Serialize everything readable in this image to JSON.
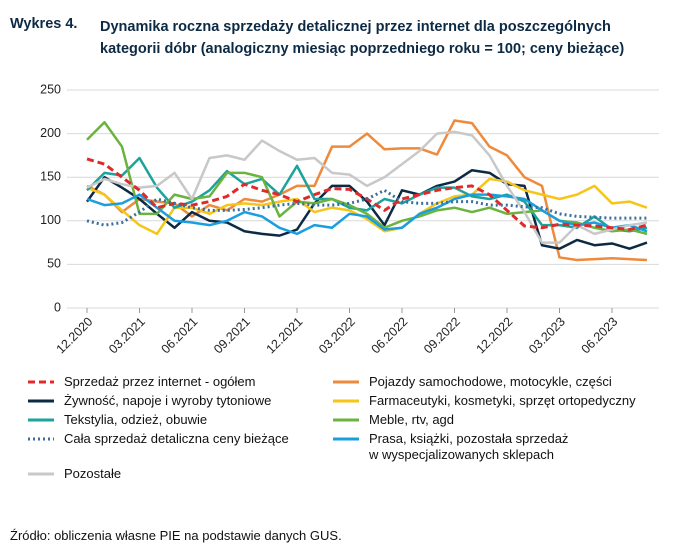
{
  "chart_data": {
    "type": "line",
    "label": "Wykres 4.",
    "title": "Dynamika roczna sprzedaży detalicznej przez internet dla poszczególnych kategorii dóbr (analogiczny miesiąc poprzedniego roku = 100; ceny bieżące)",
    "source": "Źródło: obliczenia własne PIE na podstawie danych GUS.",
    "categories": [
      "12.2020",
      null,
      null,
      "03.2021",
      null,
      null,
      "06.2021",
      null,
      null,
      "09.2021",
      null,
      null,
      "12.2021",
      null,
      null,
      "03.2022",
      null,
      null,
      "06.2022",
      null,
      null,
      "09.2022",
      null,
      null,
      "12.2022",
      null,
      null,
      "03.2023",
      null,
      null,
      "06.2023",
      null,
      null
    ],
    "ylim": [
      0,
      250
    ],
    "yticks": [
      0,
      50,
      100,
      150,
      200,
      250
    ],
    "grid": true,
    "series": [
      {
        "name": "Sprzedaż przez internet - ogółem",
        "color": "#e02a2a",
        "dash": "dashed",
        "values": [
          171,
          165,
          150,
          135,
          115,
          120,
          118,
          122,
          128,
          142,
          135,
          130,
          122,
          130,
          137,
          136,
          125,
          112,
          125,
          130,
          135,
          138,
          140,
          130,
          112,
          94,
          92,
          96,
          95,
          94,
          92,
          90,
          95
        ]
      },
      {
        "name": "Pojazdy samochodowe, motocykle, części",
        "color": "#ee8a3c",
        "dash": "solid",
        "values": [
          140,
          130,
          110,
          125,
          122,
          120,
          105,
          118,
          112,
          125,
          122,
          130,
          140,
          140,
          185,
          185,
          200,
          182,
          183,
          183,
          176,
          215,
          212,
          185,
          175,
          150,
          140,
          58,
          55,
          56,
          57,
          56,
          55
        ]
      },
      {
        "name": "Żywność, napoje i wyroby tytoniowe",
        "color": "#0d2a44",
        "dash": "solid",
        "values": [
          122,
          150,
          138,
          125,
          108,
          92,
          110,
          100,
          98,
          88,
          85,
          83,
          90,
          120,
          140,
          140,
          122,
          95,
          135,
          130,
          140,
          145,
          158,
          155,
          142,
          140,
          72,
          68,
          78,
          72,
          74,
          68,
          75
        ]
      },
      {
        "name": "Farmaceutyki, kosmetyki, sprzęt ortopedyczny",
        "color": "#f5c518",
        "dash": "solid",
        "values": [
          138,
          130,
          112,
          95,
          85,
          115,
          115,
          108,
          118,
          120,
          118,
          122,
          125,
          110,
          115,
          112,
          102,
          88,
          92,
          108,
          120,
          128,
          130,
          148,
          145,
          135,
          130,
          125,
          130,
          140,
          120,
          122,
          115
        ]
      },
      {
        "name": "Tekstylia, odzież, obuwie",
        "color": "#1ba39c",
        "dash": "solid",
        "values": [
          135,
          155,
          152,
          172,
          138,
          115,
          122,
          135,
          157,
          142,
          148,
          130,
          163,
          125,
          125,
          115,
          112,
          125,
          120,
          130,
          138,
          138,
          128,
          125,
          130,
          122,
          95,
          95,
          92,
          105,
          90,
          88,
          92
        ]
      },
      {
        "name": "Meble, rtv, agd",
        "color": "#6ab33e",
        "dash": "solid",
        "values": [
          193,
          213,
          185,
          108,
          108,
          130,
          125,
          128,
          155,
          155,
          150,
          105,
          122,
          120,
          125,
          118,
          108,
          92,
          100,
          105,
          112,
          115,
          110,
          115,
          108,
          110,
          112,
          100,
          98,
          92,
          88,
          90,
          85
        ]
      },
      {
        "name": "Cała sprzedaż detaliczna ceny bieżące",
        "color": "#3a6e9e",
        "dash": "dotted",
        "values": [
          100,
          95,
          98,
          110,
          125,
          120,
          115,
          112,
          112,
          113,
          115,
          118,
          120,
          118,
          118,
          120,
          125,
          135,
          122,
          120,
          120,
          122,
          122,
          118,
          118,
          116,
          115,
          108,
          105,
          104,
          103,
          103,
          103
        ]
      },
      {
        "name": "Prasa, książki, pozostała sprzedaż\nw wyspecjalizowanych sklepach",
        "color": "#1a9ee0",
        "dash": "solid",
        "values": [
          125,
          118,
          120,
          130,
          115,
          100,
          98,
          95,
          100,
          110,
          105,
          92,
          85,
          95,
          92,
          108,
          105,
          90,
          92,
          108,
          115,
          125,
          130,
          130,
          128,
          125,
          112,
          100,
          95,
          98,
          92,
          95,
          88
        ]
      },
      {
        "name": "Pozostałe",
        "color": "#c8c8c8",
        "dash": "solid",
        "values": [
          138,
          148,
          142,
          138,
          140,
          155,
          125,
          172,
          175,
          170,
          192,
          180,
          170,
          172,
          155,
          153,
          140,
          150,
          165,
          180,
          200,
          202,
          198,
          175,
          140,
          110,
          75,
          75,
          95,
          85,
          90,
          95,
          98
        ]
      }
    ]
  }
}
